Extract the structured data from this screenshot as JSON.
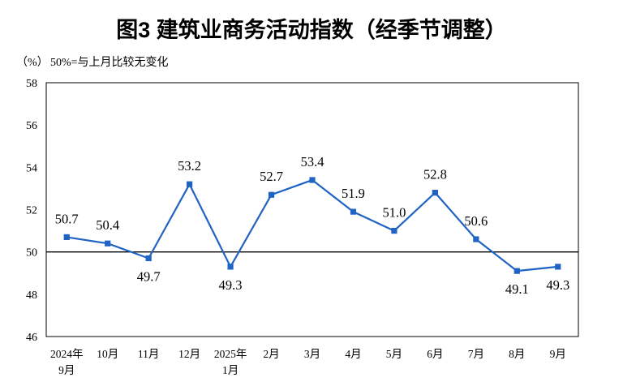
{
  "colors": {
    "line": "#1f63c4",
    "marker": "#1f63c4",
    "frame": "#000000",
    "reference_line": "#000000"
  },
  "chart_data": {
    "type": "line",
    "title": "图3  建筑业商务活动指数（经季节调整）",
    "ylabel": "（%）",
    "annotation": "50%=与上月比较无变化",
    "categories": [
      [
        "2024年",
        "9月"
      ],
      [
        "10月"
      ],
      [
        "11月"
      ],
      [
        "12月"
      ],
      [
        "2025年",
        "1月"
      ],
      [
        "2月"
      ],
      [
        "3月"
      ],
      [
        "4月"
      ],
      [
        "5月"
      ],
      [
        "6月"
      ],
      [
        "7月"
      ],
      [
        "8月"
      ],
      [
        "9月"
      ]
    ],
    "series": [
      {
        "values": [
          50.7,
          50.4,
          49.7,
          53.2,
          49.3,
          52.7,
          53.4,
          51.9,
          51.0,
          52.8,
          50.6,
          49.1,
          49.3
        ]
      }
    ],
    "ylim": [
      46,
      58
    ],
    "yticks": [
      46,
      48,
      50,
      52,
      54,
      56,
      58
    ],
    "reference_line": 50,
    "grid": false,
    "data_labels": true,
    "legend": "none"
  }
}
